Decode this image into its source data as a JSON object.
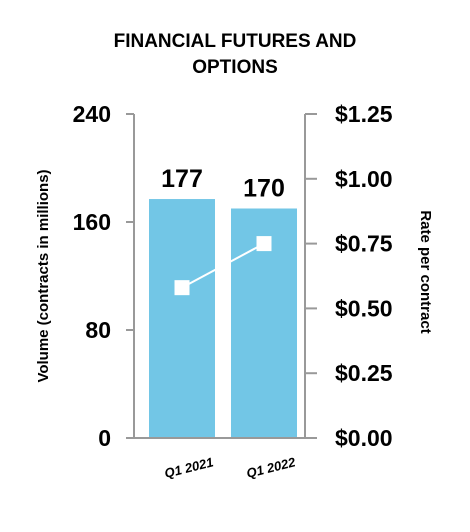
{
  "chart_data": {
    "type": "bar",
    "title_lines": [
      "FINANCIAL FUTURES AND",
      "OPTIONS"
    ],
    "categories": [
      "Q1 2021",
      "Q1 2022"
    ],
    "series": [
      {
        "type": "bar",
        "axis": "left",
        "values": [
          177,
          170
        ],
        "data_labels": [
          "177",
          "170"
        ]
      },
      {
        "type": "line",
        "axis": "right",
        "values": [
          0.58,
          0.75
        ]
      }
    ],
    "ylabel": "Volume (contracts in millions)",
    "ylabel_right": "Rate per contract",
    "ylim": [
      0,
      240
    ],
    "ylim_right": [
      0,
      1.25
    ],
    "yticks": [
      0,
      80,
      160,
      240
    ],
    "yticks_labels": [
      "0",
      "80",
      "160",
      "240"
    ],
    "yticks_right": [
      0,
      0.25,
      0.5,
      0.75,
      1.0,
      1.25
    ],
    "yticks_right_labels": [
      "$0.00",
      "$0.25",
      "$0.50",
      "$0.75",
      "$1.00",
      "$1.25"
    ],
    "grid": false,
    "colors": {
      "bar": "#72c6e6",
      "line": "#ffffff",
      "marker": "#ffffff",
      "axis": "#999999"
    }
  }
}
